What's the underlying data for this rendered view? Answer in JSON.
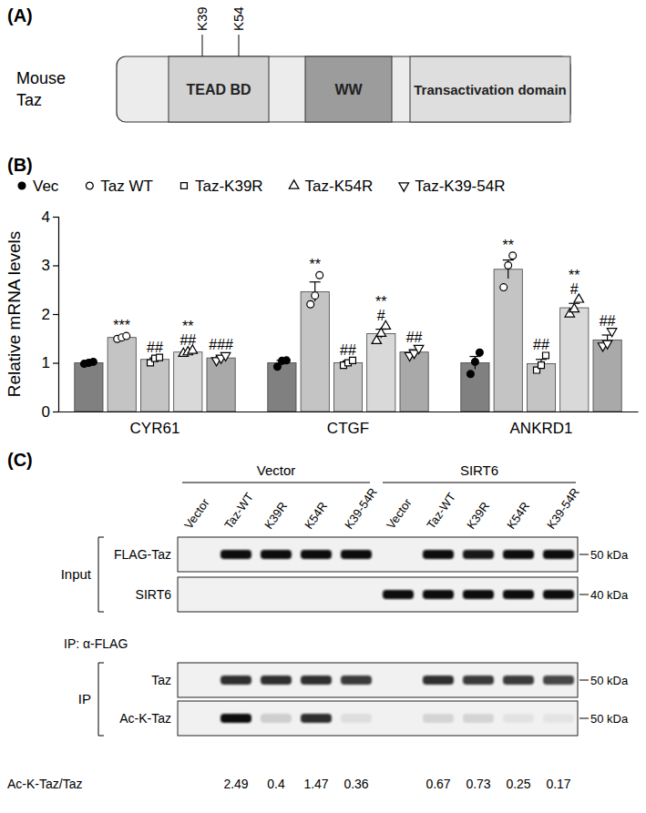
{
  "panel_a": {
    "label": "(A)",
    "protein_label": [
      "Mouse",
      "Taz"
    ],
    "domains": [
      "TEAD BD",
      "WW",
      "Transactivation domain"
    ],
    "sites": [
      "K39",
      "K54"
    ]
  },
  "chart_data": {
    "type": "bar",
    "title": "(B)",
    "y_label": "Relative mRNA levels",
    "categories": [
      "CYR61",
      "CTGF",
      "ANKRD1"
    ],
    "legend": "top",
    "ylim": [
      0,
      4
    ],
    "yticks": [
      0,
      1,
      2,
      3,
      4
    ],
    "series": [
      {
        "name": "Vec",
        "color": "#808080",
        "marker": "circle",
        "values": [
          1.0,
          1.0,
          1.0
        ],
        "errors": [
          0.02,
          0.05,
          0.13
        ],
        "points": [
          [
            0.98,
            1.0,
            1.02
          ],
          [
            0.92,
            1.04,
            1.05
          ],
          [
            0.77,
            1.02,
            1.21
          ]
        ],
        "significance": [
          [],
          [],
          []
        ]
      },
      {
        "name": "Taz WT",
        "color": "#c4c4c4",
        "marker": "circle-open",
        "values": [
          1.52,
          2.46,
          2.92
        ],
        "errors": [
          0.02,
          0.2,
          0.19
        ],
        "points": [
          [
            1.49,
            1.52,
            1.55
          ],
          [
            2.2,
            2.38,
            2.8
          ],
          [
            2.55,
            3.0,
            3.2
          ]
        ],
        "significance": [
          [
            "***"
          ],
          [
            "**"
          ],
          [
            "**"
          ]
        ]
      },
      {
        "name": "Taz-K39R",
        "color": "#c4c4c4",
        "marker": "square-open",
        "values": [
          1.07,
          1.0,
          0.98
        ],
        "errors": [
          0.03,
          0.04,
          0.09
        ],
        "points": [
          [
            1.0,
            1.09,
            1.11
          ],
          [
            0.95,
            1.0,
            1.05
          ],
          [
            0.85,
            0.95,
            1.15
          ]
        ],
        "significance": [
          [
            "##"
          ],
          [
            "##"
          ],
          [
            "##"
          ]
        ]
      },
      {
        "name": "Taz-K54R",
        "color": "#d9d9d9",
        "marker": "triangle-open",
        "values": [
          1.22,
          1.6,
          2.13
        ],
        "errors": [
          0.02,
          0.09,
          0.09
        ],
        "points": [
          [
            1.19,
            1.22,
            1.25
          ],
          [
            1.45,
            1.6,
            1.75
          ],
          [
            2.0,
            2.1,
            2.3
          ]
        ],
        "significance": [
          [
            "**",
            "##"
          ],
          [
            "**",
            "#"
          ],
          [
            "**",
            "#"
          ]
        ]
      },
      {
        "name": "Taz-K39-54R",
        "color": "#a9a9a9",
        "marker": "triangle-down-open",
        "values": [
          1.1,
          1.22,
          1.47
        ],
        "errors": [
          0.03,
          0.05,
          0.1
        ],
        "points": [
          [
            1.05,
            1.1,
            1.15
          ],
          [
            1.15,
            1.2,
            1.3
          ],
          [
            1.35,
            1.4,
            1.65
          ]
        ],
        "significance": [
          [
            "###"
          ],
          [
            "##"
          ],
          [
            "##"
          ]
        ]
      }
    ]
  },
  "panel_c": {
    "label": "(C)",
    "groups": [
      "Vector",
      "SIRT6"
    ],
    "lanes": [
      "Vector",
      "Taz-WT",
      "K39R",
      "K54R",
      "K39-54R",
      "Vector",
      "Taz-WT",
      "K39R",
      "K54R",
      "K39-54R"
    ],
    "input_label": "Input",
    "ip_label": "IP",
    "ip_antibody": "IP: α-FLAG",
    "rows": [
      {
        "name": "FLAG-Taz",
        "section": "input",
        "size": "50 kDa",
        "intensity": [
          0,
          1,
          1,
          1,
          1,
          0,
          1,
          0.95,
          1,
          1
        ]
      },
      {
        "name": "SIRT6",
        "section": "input",
        "size": "40 kDa",
        "intensity": [
          0,
          0,
          0,
          0,
          0,
          1,
          1,
          1,
          1,
          1
        ]
      },
      {
        "name": "Taz",
        "section": "ip",
        "size": "50 kDa",
        "intensity": [
          0,
          0.85,
          0.85,
          0.85,
          0.8,
          0,
          0.85,
          0.8,
          0.8,
          0.75
        ]
      },
      {
        "name": "Ac-K-Taz",
        "section": "ip",
        "size": "50 kDa",
        "intensity": [
          0,
          1,
          0.15,
          0.85,
          0.08,
          0,
          0.12,
          0.12,
          0.06,
          0.05
        ]
      }
    ],
    "ratio_label": "Ac-K-Taz/Taz",
    "ratios": [
      null,
      2.49,
      0.4,
      1.47,
      0.36,
      null,
      0.67,
      0.73,
      0.25,
      0.17
    ]
  }
}
